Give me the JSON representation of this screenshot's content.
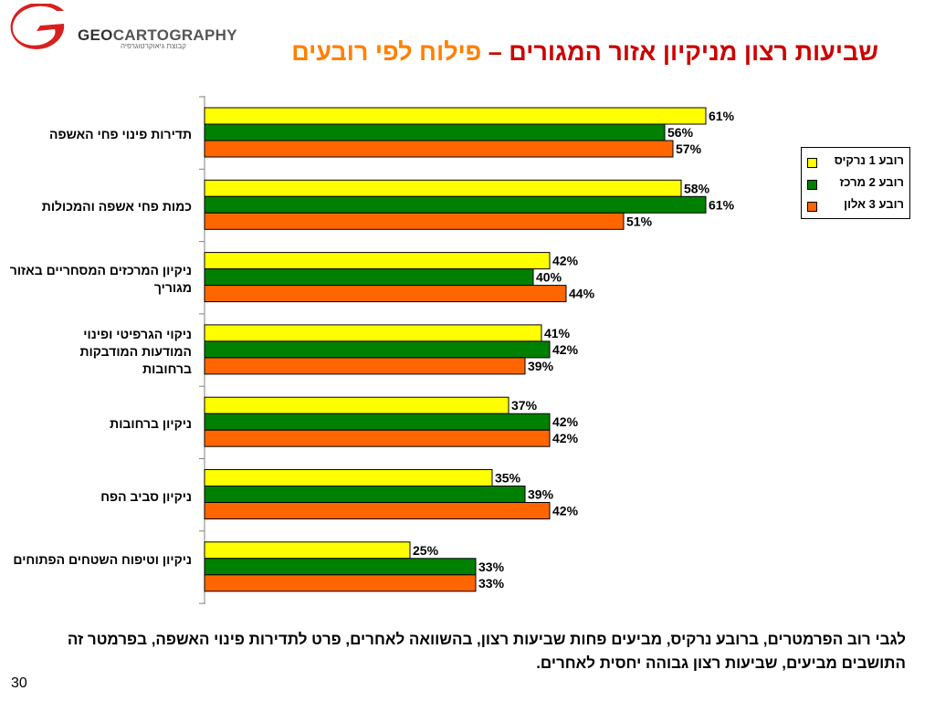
{
  "brand": {
    "name_bold": "GEO",
    "name_rest": "CARTOGRAPHY",
    "tagline": "קבוצת גיאוקרטוגרפיה"
  },
  "title": {
    "part1": "שביעות רצון מניקיון אזור המגורים – ",
    "part2": "פילוח לפי רובעים"
  },
  "summary": "לגבי רוב הפרמטרים, ברובע נרקיס, מביעים פחות שביעות רצון, בהשוואה לאחרים, פרט לתדירות פינוי האשפה, בפרמטר זה התושבים מביעים, שביעות רצון גבוהה יחסית לאחרים.",
  "page_number": "30",
  "chart_data": {
    "type": "bar",
    "orientation": "horizontal",
    "categories": [
      "תדירות פינוי פחי האשפה",
      "כמות פחי אשפה והמכולות",
      "ניקיון המרכזים המסחריים באזור מגוריך",
      "ניקוי הגרפיטי ופינוי המודעות המודבקות ברחובות",
      "ניקיון ברחובות",
      "ניקיון סביב הפח",
      "ניקיון וטיפוח השטחים הפתוחים"
    ],
    "series": [
      {
        "name": "רובע 1 נרקיס",
        "color": "#ffff00",
        "values": [
          61,
          58,
          42,
          41,
          37,
          35,
          25
        ]
      },
      {
        "name": "רובע 2 מרכז",
        "color": "#008000",
        "values": [
          56,
          61,
          40,
          42,
          42,
          39,
          33
        ]
      },
      {
        "name": "רובע 3 אלון",
        "color": "#ff6600",
        "values": [
          57,
          51,
          44,
          39,
          42,
          42,
          33
        ]
      }
    ],
    "value_suffix": "%",
    "xlim": [
      0,
      100
    ],
    "legend_position": "right",
    "grid": false
  }
}
